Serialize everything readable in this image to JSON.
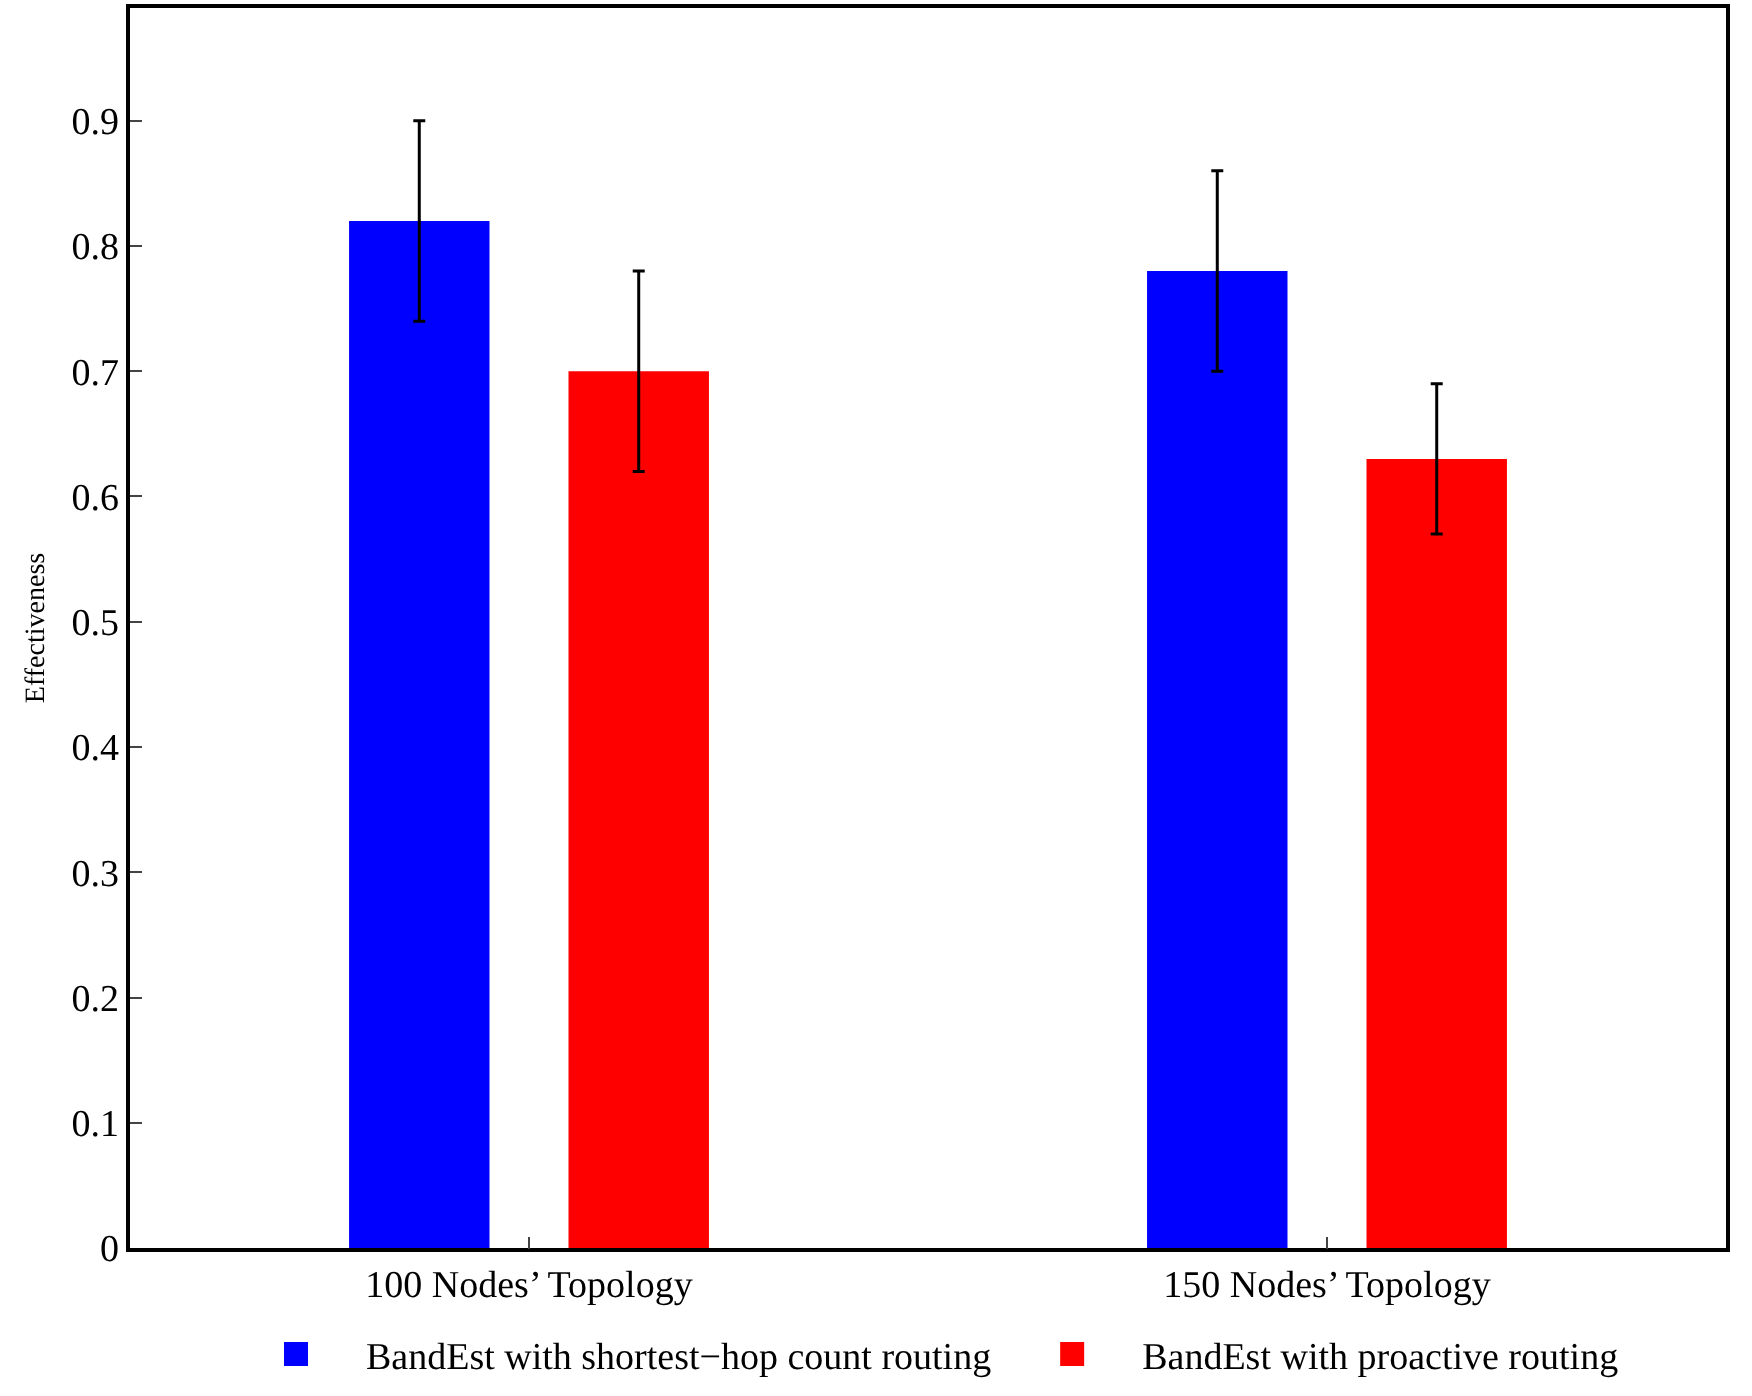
{
  "chart_data": {
    "type": "bar",
    "ylabel": "Effectiveness",
    "categories": [
      "100 Nodes’ Topology",
      "150 Nodes’ Topology"
    ],
    "series": [
      {
        "name": "BandEst with shortest−hop count routing",
        "color": "#0000ff",
        "values": [
          0.82,
          0.78
        ],
        "errors": [
          [
            0.74,
            0.9
          ],
          [
            0.7,
            0.86
          ]
        ]
      },
      {
        "name": "BandEst with proactive routing",
        "color": "#ff0000",
        "values": [
          0.7,
          0.63
        ],
        "errors": [
          [
            0.62,
            0.78
          ],
          [
            0.57,
            0.69
          ]
        ]
      }
    ],
    "ylim": [
      0,
      0.99
    ],
    "yticks": [
      0,
      0.1,
      0.2,
      0.3,
      0.4,
      0.5,
      0.6,
      0.7,
      0.8,
      0.9
    ],
    "legend": "bottom"
  }
}
